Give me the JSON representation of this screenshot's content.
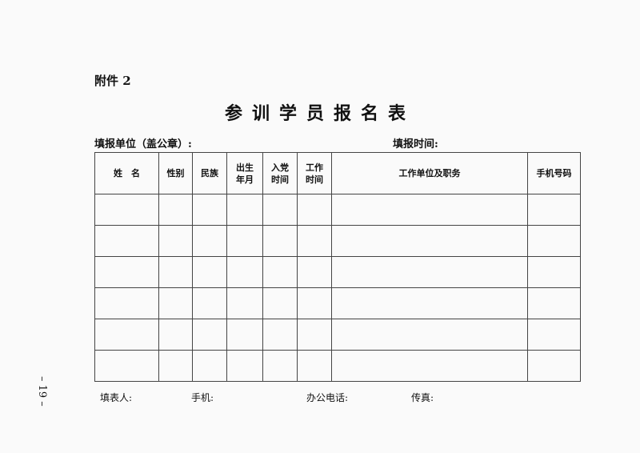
{
  "attachment_label": "附件 2",
  "title": "参训学员报名表",
  "fill_unit_label": "填报单位（盖公章）:",
  "fill_time_label": "填报时间:",
  "table": {
    "headers": [
      {
        "line1": "姓　名",
        "line2": ""
      },
      {
        "line1": "性别",
        "line2": ""
      },
      {
        "line1": "民族",
        "line2": ""
      },
      {
        "line1": "出生",
        "line2": "年月"
      },
      {
        "line1": "入党",
        "line2": "时间"
      },
      {
        "line1": "工作",
        "line2": "时间"
      },
      {
        "line1": "工作单位及职务",
        "line2": ""
      },
      {
        "line1": "手机号码",
        "line2": ""
      }
    ],
    "rows": [
      [
        "",
        "",
        "",
        "",
        "",
        "",
        "",
        ""
      ],
      [
        "",
        "",
        "",
        "",
        "",
        "",
        "",
        ""
      ],
      [
        "",
        "",
        "",
        "",
        "",
        "",
        "",
        ""
      ],
      [
        "",
        "",
        "",
        "",
        "",
        "",
        "",
        ""
      ],
      [
        "",
        "",
        "",
        "",
        "",
        "",
        "",
        ""
      ],
      [
        "",
        "",
        "",
        "",
        "",
        "",
        "",
        ""
      ]
    ]
  },
  "footer": {
    "filler": "填表人:",
    "mobile": "手机:",
    "office_phone": "办公电话:",
    "fax": "传真:"
  },
  "page_number": "– 19 –"
}
